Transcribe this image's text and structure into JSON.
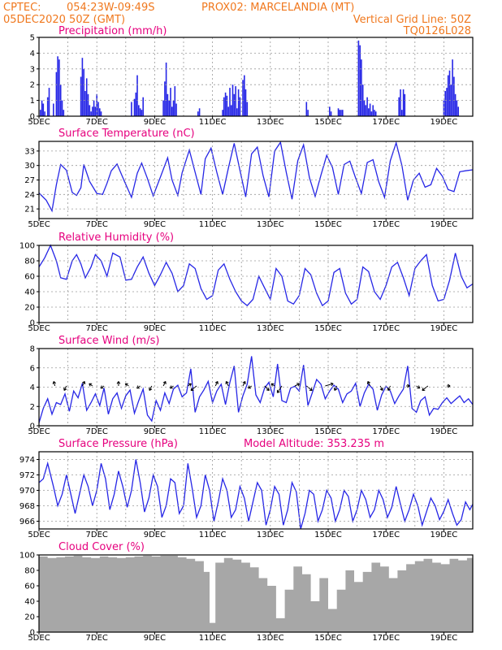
{
  "header": {
    "line1_left": "CPTEC:",
    "line1_coords": "054:23W-09:49S",
    "line1_station": "PROX02: MARCELANDIA (MT)",
    "line2_left": "05DEC2020 50Z (GMT)",
    "line2_right": "Vertical Grid Line: 50Z",
    "line3_right": "TQ0126L028"
  },
  "x_axis": {
    "ticks": [
      "5DEC",
      "7DEC",
      "9DEC",
      "11DEC",
      "13DEC",
      "15DEC",
      "17DEC",
      "19DEC"
    ],
    "tick_days": [
      0,
      2,
      4,
      6,
      8,
      10,
      12,
      14
    ],
    "range_days": [
      0,
      15
    ]
  },
  "colors": {
    "line": "#2626e6",
    "bar": "#2626e6",
    "cloud": "#a7a7a7",
    "title": "#e6007e",
    "header": "#f0781e"
  },
  "chart_data": [
    {
      "type": "bar",
      "title": "Precipitation (mm/h)",
      "ylim": [
        0,
        5
      ],
      "yticks": [
        0,
        1,
        2,
        3,
        4,
        5
      ],
      "grid": true,
      "x": [
        0.05,
        0.1,
        0.15,
        0.2,
        0.3,
        0.35,
        0.5,
        0.6,
        0.65,
        0.7,
        0.75,
        0.8,
        0.85,
        1.45,
        1.5,
        1.55,
        1.6,
        1.65,
        1.7,
        1.75,
        1.8,
        1.85,
        1.9,
        1.95,
        2.0,
        2.05,
        2.1,
        2.15,
        3.2,
        3.3,
        3.35,
        3.4,
        3.45,
        3.5,
        3.55,
        3.6,
        4.3,
        4.35,
        4.4,
        4.45,
        4.5,
        4.55,
        4.6,
        4.65,
        4.7,
        4.75,
        5.5,
        5.55,
        6.35,
        6.4,
        6.45,
        6.5,
        6.55,
        6.6,
        6.65,
        6.7,
        6.75,
        6.8,
        6.85,
        6.9,
        6.95,
        7.05,
        7.1,
        7.15,
        7.2,
        9.25,
        9.3,
        10.05,
        10.1,
        10.35,
        10.4,
        10.45,
        10.5,
        11.05,
        11.1,
        11.15,
        11.2,
        11.25,
        11.3,
        11.35,
        11.4,
        11.45,
        11.5,
        11.55,
        11.6,
        11.65,
        12.45,
        12.5,
        12.55,
        12.6,
        12.65,
        14.0,
        14.05,
        14.1,
        14.15,
        14.2,
        14.25,
        14.3,
        14.35,
        14.4,
        14.45,
        14.5
      ],
      "values": [
        0.4,
        1.0,
        0.8,
        0.3,
        1.2,
        1.8,
        0.8,
        2.8,
        3.8,
        3.6,
        2.0,
        1.0,
        0.4,
        2.5,
        3.7,
        3.0,
        1.6,
        2.4,
        1.4,
        0.7,
        0.3,
        0.6,
        1.0,
        0.6,
        1.4,
        0.9,
        0.5,
        0.3,
        0.9,
        1.1,
        1.5,
        2.6,
        0.7,
        0.5,
        0.4,
        1.2,
        1.0,
        2.2,
        3.4,
        1.4,
        1.0,
        1.8,
        0.6,
        1.0,
        1.9,
        0.8,
        0.3,
        0.5,
        0.4,
        1.2,
        1.5,
        1.3,
        0.6,
        1.8,
        0.7,
        2.0,
        1.4,
        1.9,
        0.5,
        1.7,
        1.2,
        2.3,
        2.6,
        1.7,
        0.9,
        0.9,
        0.4,
        0.6,
        0.3,
        0.5,
        0.4,
        0.4,
        0.4,
        4.8,
        4.5,
        3.6,
        2.0,
        1.0,
        0.7,
        1.2,
        0.5,
        0.8,
        0.3,
        0.7,
        0.4,
        0.3,
        1.2,
        1.7,
        0.4,
        1.7,
        1.4,
        1.0,
        1.6,
        1.8,
        2.6,
        2.9,
        2.0,
        3.6,
        2.5,
        1.4,
        1.0,
        0.6
      ]
    },
    {
      "type": "line",
      "title": "Surface Temperature (nC)",
      "ylim": [
        19,
        35
      ],
      "yticks": [
        21,
        24,
        27,
        30,
        33
      ],
      "grid": true,
      "x": [
        0,
        0.25,
        0.45,
        0.6,
        0.75,
        0.95,
        1.15,
        1.3,
        1.45,
        1.55,
        1.75,
        2.0,
        2.2,
        2.35,
        2.5,
        2.7,
        2.95,
        3.2,
        3.4,
        3.55,
        3.75,
        3.95,
        4.2,
        4.45,
        4.6,
        4.8,
        4.95,
        5.2,
        5.4,
        5.6,
        5.75,
        5.95,
        6.15,
        6.35,
        6.55,
        6.75,
        6.95,
        7.15,
        7.35,
        7.55,
        7.75,
        7.95,
        8.15,
        8.35,
        8.55,
        8.75,
        8.95,
        9.15,
        9.35,
        9.55,
        9.75,
        9.95,
        10.15,
        10.35,
        10.55,
        10.75,
        10.95,
        11.15,
        11.35,
        11.55,
        11.75,
        11.95,
        12.15,
        12.35,
        12.55,
        12.75,
        12.95,
        13.15,
        13.35,
        13.55,
        13.75,
        13.95,
        14.15,
        14.35,
        14.55,
        14.75,
        15.0
      ],
      "values": [
        24.3,
        22.8,
        20.6,
        26.0,
        30.2,
        29.0,
        24.4,
        23.8,
        25.4,
        30.2,
        26.7,
        24.2,
        24.0,
        26.3,
        28.9,
        30.3,
        26.8,
        23.4,
        28.4,
        30.5,
        27.3,
        23.7,
        27.6,
        31.6,
        27.0,
        23.8,
        28.5,
        33.2,
        28.6,
        24.0,
        31.4,
        33.6,
        28.6,
        24.0,
        29.5,
        34.6,
        29.0,
        23.5,
        32.4,
        33.8,
        27.9,
        23.5,
        33.0,
        34.8,
        28.6,
        23.0,
        31.0,
        34.3,
        27.5,
        23.6,
        28.0,
        32.1,
        29.6,
        24.0,
        30.2,
        30.9,
        27.4,
        24.2,
        30.6,
        31.2,
        26.6,
        23.4,
        31.0,
        34.7,
        30.0,
        22.8,
        27.0,
        28.4,
        25.5,
        26.0,
        29.4,
        27.8,
        25.0,
        24.6,
        28.7,
        28.9,
        29.1
      ]
    },
    {
      "type": "line",
      "title": "Relative Humidity (%)",
      "ylim": [
        0,
        100
      ],
      "yticks": [
        0,
        20,
        40,
        60,
        80,
        100
      ],
      "grid": true,
      "x": [
        0,
        0.2,
        0.4,
        0.6,
        0.75,
        0.95,
        1.15,
        1.3,
        1.45,
        1.6,
        1.8,
        1.95,
        2.15,
        2.35,
        2.55,
        2.8,
        3.0,
        3.2,
        3.4,
        3.6,
        3.8,
        4.0,
        4.2,
        4.4,
        4.6,
        4.8,
        5.0,
        5.2,
        5.4,
        5.6,
        5.8,
        6.0,
        6.2,
        6.4,
        6.6,
        6.8,
        7.0,
        7.2,
        7.4,
        7.6,
        7.8,
        8.0,
        8.2,
        8.4,
        8.6,
        8.8,
        9.0,
        9.2,
        9.4,
        9.6,
        9.8,
        10.0,
        10.2,
        10.4,
        10.6,
        10.8,
        11.0,
        11.2,
        11.4,
        11.6,
        11.8,
        12.0,
        12.2,
        12.4,
        12.6,
        12.8,
        13.0,
        13.2,
        13.4,
        13.6,
        13.8,
        14.0,
        14.2,
        14.4,
        14.6,
        14.8,
        15.0
      ],
      "values": [
        72,
        84,
        100,
        80,
        58,
        56,
        80,
        88,
        76,
        58,
        72,
        88,
        80,
        60,
        90,
        85,
        55,
        56,
        72,
        85,
        64,
        48,
        62,
        78,
        64,
        40,
        48,
        76,
        70,
        44,
        30,
        35,
        68,
        76,
        56,
        40,
        28,
        22,
        30,
        60,
        45,
        30,
        70,
        60,
        28,
        24,
        35,
        70,
        62,
        38,
        22,
        28,
        65,
        70,
        38,
        24,
        30,
        72,
        66,
        40,
        30,
        48,
        72,
        78,
        58,
        35,
        70,
        80,
        88,
        48,
        28,
        30,
        55,
        90,
        60,
        45,
        50
      ]
    },
    {
      "type": "line",
      "title": "Surface Wind (m/s)",
      "ylim": [
        0,
        8
      ],
      "yticks": [
        0,
        2,
        4,
        6,
        8
      ],
      "grid": true,
      "x": [
        0,
        0.15,
        0.3,
        0.45,
        0.6,
        0.75,
        0.9,
        1.05,
        1.2,
        1.35,
        1.5,
        1.65,
        1.8,
        1.95,
        2.1,
        2.25,
        2.4,
        2.55,
        2.7,
        2.85,
        3.0,
        3.15,
        3.3,
        3.45,
        3.6,
        3.75,
        3.9,
        4.05,
        4.2,
        4.35,
        4.5,
        4.65,
        4.8,
        4.95,
        5.1,
        5.25,
        5.4,
        5.55,
        5.7,
        5.85,
        6.0,
        6.15,
        6.3,
        6.45,
        6.6,
        6.75,
        6.9,
        7.05,
        7.2,
        7.35,
        7.5,
        7.65,
        7.8,
        7.95,
        8.1,
        8.25,
        8.4,
        8.55,
        8.7,
        8.85,
        9.0,
        9.15,
        9.3,
        9.45,
        9.6,
        9.75,
        9.9,
        10.05,
        10.2,
        10.35,
        10.5,
        10.65,
        10.8,
        10.95,
        11.1,
        11.25,
        11.4,
        11.55,
        11.7,
        11.85,
        12.0,
        12.15,
        12.3,
        12.45,
        12.6,
        12.75,
        12.9,
        13.05,
        13.2,
        13.35,
        13.5,
        13.65,
        13.8,
        13.95,
        14.1,
        14.25,
        14.4,
        14.55,
        14.7,
        14.85,
        15.0
      ],
      "values": [
        0.3,
        1.8,
        2.8,
        1.2,
        2.4,
        2.2,
        3.3,
        1.5,
        3.6,
        2.9,
        4.4,
        1.6,
        2.4,
        3.3,
        2.1,
        3.9,
        1.2,
        2.8,
        3.4,
        1.8,
        3.1,
        3.7,
        1.3,
        2.6,
        3.8,
        1.1,
        0.5,
        2.6,
        1.6,
        3.4,
        2.3,
        3.8,
        4.2,
        3.0,
        3.4,
        5.9,
        1.4,
        3.0,
        3.7,
        4.6,
        2.4,
        3.6,
        4.3,
        2.2,
        4.5,
        6.2,
        1.4,
        3.1,
        4.3,
        7.2,
        3.2,
        2.4,
        3.9,
        4.5,
        3.0,
        6.4,
        2.6,
        2.4,
        3.9,
        4.1,
        3.6,
        6.3,
        2.1,
        3.4,
        4.8,
        4.3,
        2.8,
        3.6,
        4.2,
        3.8,
        2.4,
        3.3,
        3.6,
        4.4,
        2.0,
        3.4,
        4.3,
        3.8,
        1.6,
        3.2,
        4.1,
        3.6,
        2.3,
        3.1,
        3.8,
        6.2,
        1.8,
        1.4,
        2.6,
        3.0,
        1.1,
        1.8,
        1.7,
        2.4,
        2.9,
        2.3,
        2.7,
        3.1,
        2.4,
        2.8,
        2.2
      ],
      "barbs": [
        {
          "day": 0.55,
          "u": -0.5,
          "v": 2
        },
        {
          "day": 0.95,
          "u": -1,
          "v": -2
        },
        {
          "day": 1.5,
          "u": 1,
          "v": 2
        },
        {
          "day": 1.85,
          "u": -1.5,
          "v": 1
        },
        {
          "day": 2.25,
          "u": -1.5,
          "v": -1
        },
        {
          "day": 2.75,
          "u": 0,
          "v": 2
        },
        {
          "day": 3.1,
          "u": -1.5,
          "v": 1
        },
        {
          "day": 3.5,
          "u": -1.5,
          "v": -1
        },
        {
          "day": 3.9,
          "u": -1,
          "v": -2
        },
        {
          "day": 4.3,
          "u": 1,
          "v": 2
        },
        {
          "day": 4.65,
          "u": -1.5,
          "v": -1
        },
        {
          "day": 5.15,
          "u": 1.5,
          "v": 1
        },
        {
          "day": 5.45,
          "u": -2.5,
          "v": -2
        },
        {
          "day": 6.1,
          "u": 1,
          "v": 2
        },
        {
          "day": 6.55,
          "u": -1,
          "v": 2
        },
        {
          "day": 7.05,
          "u": 1,
          "v": 2
        },
        {
          "day": 7.35,
          "u": -1.5,
          "v": -1
        },
        {
          "day": 7.8,
          "u": 2,
          "v": -2
        },
        {
          "day": 8.15,
          "u": -1.5,
          "v": 1
        },
        {
          "day": 8.4,
          "u": -2,
          "v": -3
        },
        {
          "day": 8.85,
          "u": 2,
          "v": 1
        },
        {
          "day": 9.25,
          "u": 2.5,
          "v": -2
        },
        {
          "day": 9.9,
          "u": 3.5,
          "v": 1
        },
        {
          "day": 10.3,
          "u": -1,
          "v": -2
        },
        {
          "day": 11.45,
          "u": -1,
          "v": 2
        },
        {
          "day": 11.8,
          "u": 1,
          "v": -2
        },
        {
          "day": 12.15,
          "u": -1,
          "v": -2
        },
        {
          "day": 12.7,
          "u": 1.5,
          "v": 0
        },
        {
          "day": 13.05,
          "u": 1.5,
          "v": -1
        },
        {
          "day": 13.45,
          "u": -2.5,
          "v": -2
        },
        {
          "day": 14.1,
          "u": 1.5,
          "v": 0
        }
      ]
    },
    {
      "type": "line",
      "title": "Surface Pressure (hPa)",
      "annotation": "Model Altitude: 353.235 m",
      "ylim": [
        965,
        975
      ],
      "yticks": [
        966,
        968,
        970,
        972,
        974
      ],
      "grid": true,
      "x": [
        0,
        0.15,
        0.3,
        0.5,
        0.65,
        0.8,
        0.95,
        1.1,
        1.25,
        1.4,
        1.55,
        1.7,
        1.85,
        2.0,
        2.15,
        2.3,
        2.45,
        2.6,
        2.75,
        2.9,
        3.05,
        3.2,
        3.35,
        3.5,
        3.65,
        3.8,
        3.95,
        4.1,
        4.25,
        4.4,
        4.55,
        4.7,
        4.85,
        5.0,
        5.15,
        5.3,
        5.45,
        5.6,
        5.75,
        5.9,
        6.05,
        6.2,
        6.35,
        6.5,
        6.65,
        6.8,
        6.95,
        7.1,
        7.25,
        7.4,
        7.55,
        7.7,
        7.85,
        8.0,
        8.15,
        8.3,
        8.45,
        8.6,
        8.75,
        8.9,
        9.05,
        9.2,
        9.35,
        9.5,
        9.65,
        9.8,
        9.95,
        10.1,
        10.25,
        10.4,
        10.55,
        10.7,
        10.85,
        11.0,
        11.15,
        11.3,
        11.45,
        11.6,
        11.75,
        11.9,
        12.05,
        12.2,
        12.35,
        12.5,
        12.65,
        12.8,
        12.95,
        13.1,
        13.25,
        13.4,
        13.55,
        13.7,
        13.85,
        14.0,
        14.15,
        14.3,
        14.45,
        14.6,
        14.75,
        14.9,
        15.0
      ],
      "values": [
        971,
        971.5,
        973.5,
        970.5,
        968,
        969.5,
        972,
        969.5,
        967,
        969.5,
        972,
        970.5,
        968,
        970,
        973.5,
        971.5,
        967.5,
        969.5,
        972.5,
        970.5,
        967.8,
        970,
        974,
        971,
        967.2,
        969,
        972,
        970.5,
        966.5,
        968,
        971.5,
        971,
        967,
        968,
        973.5,
        970.2,
        966.5,
        968,
        972,
        970,
        966,
        968.5,
        971.5,
        970,
        966.5,
        967.5,
        970.5,
        969,
        966,
        968.5,
        971,
        970,
        965.5,
        967.5,
        970.5,
        969.5,
        965.5,
        967.5,
        971,
        969.8,
        965,
        967,
        970,
        969.5,
        966,
        967.5,
        970,
        969,
        966,
        967.5,
        970,
        969.2,
        966,
        967.5,
        970,
        968.8,
        966.5,
        967.5,
        970,
        968.8,
        966.5,
        967.8,
        970.5,
        968.2,
        966,
        967.5,
        969.5,
        968,
        965.5,
        967.2,
        969,
        968,
        966.2,
        967.3,
        968.8,
        967,
        965.5,
        966.2,
        968.5,
        967.5,
        968.2
      ]
    },
    {
      "type": "area",
      "title": "Cloud Cover (%)",
      "ylim": [
        0,
        100
      ],
      "yticks": [
        0,
        20,
        40,
        60,
        80,
        100
      ],
      "grid": false,
      "x": [
        0,
        0.3,
        0.6,
        0.9,
        1.2,
        1.5,
        1.8,
        2.1,
        2.4,
        2.7,
        3.0,
        3.3,
        3.6,
        3.9,
        4.2,
        4.5,
        4.8,
        5.1,
        5.4,
        5.7,
        5.9,
        6.1,
        6.4,
        6.7,
        7.0,
        7.3,
        7.6,
        7.9,
        8.2,
        8.5,
        8.8,
        9.1,
        9.4,
        9.7,
        10.0,
        10.3,
        10.6,
        10.9,
        11.2,
        11.5,
        11.8,
        12.1,
        12.4,
        12.7,
        13.0,
        13.3,
        13.6,
        13.9,
        14.2,
        14.5,
        14.8,
        15.0
      ],
      "values": [
        98,
        96,
        97,
        98,
        99,
        97,
        96,
        98,
        97,
        96,
        97,
        98,
        99,
        98,
        99,
        99,
        97,
        95,
        92,
        78,
        12,
        90,
        96,
        94,
        90,
        84,
        70,
        60,
        18,
        55,
        85,
        75,
        40,
        70,
        30,
        55,
        80,
        65,
        78,
        90,
        85,
        70,
        80,
        88,
        92,
        95,
        90,
        88,
        95,
        93,
        96,
        97
      ]
    }
  ]
}
